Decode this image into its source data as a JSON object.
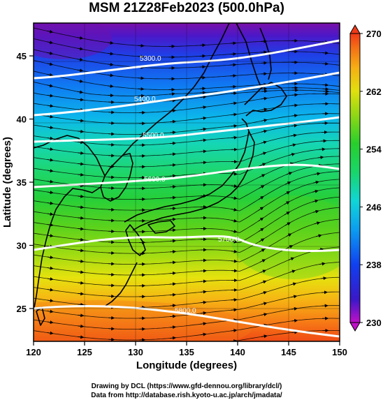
{
  "title": "MSM 21Z28Feb2023 (500.0hPa)",
  "map": {
    "xlabel": "Longitude (degrees)",
    "ylabel": "Latitude  (degrees)",
    "xticks": [
      "120",
      "125",
      "130",
      "135",
      "140",
      "145",
      "150"
    ],
    "yticks": [
      "25",
      "30",
      "35",
      "40",
      "45"
    ],
    "xlim": [
      120,
      150
    ],
    "ylim": [
      22.4,
      47.6
    ]
  },
  "colorbar": {
    "labels": [
      "270",
      "262",
      "254",
      "246",
      "238",
      "230"
    ],
    "range": [
      230,
      270
    ]
  },
  "contours": [
    {
      "label": "5300.0"
    },
    {
      "label": "5400.0"
    },
    {
      "label": "5500.0"
    },
    {
      "label": "5600.0"
    },
    {
      "label": "5700.0"
    },
    {
      "label": "5800.0"
    }
  ],
  "credits": {
    "line1": "Drawing by DCL (https://www.gfd-dennou.org/library/dcl/)",
    "line2": "Data from http://database.rish.kyoto-u.ac.jp/arch/jmadata/"
  }
}
